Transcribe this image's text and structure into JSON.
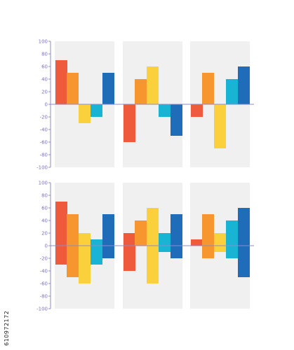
{
  "stock_id": "610972172",
  "colors": {
    "panel": "#f0f0f0",
    "axis": "#8c8cc8",
    "tick_text": "#7a74b8",
    "bars": [
      "#f05a3c",
      "#f7952f",
      "#fbd03d",
      "#19b3d3",
      "#1f6db8"
    ]
  },
  "chart_data": [
    {
      "type": "bar",
      "title": "",
      "xlabel": "",
      "ylabel": "",
      "ylim": [
        -100,
        100
      ],
      "yticks": [
        100,
        80,
        60,
        40,
        20,
        0,
        -20,
        -40,
        -60,
        -80,
        -100
      ],
      "tick_labels": [
        "100",
        "80",
        "60",
        "40",
        "20",
        "0",
        "-20",
        "-40",
        "-60",
        "-80",
        "-100"
      ],
      "grid": false,
      "style": "simple",
      "groups": [
        {
          "values": [
            70,
            50,
            -30,
            -20,
            50
          ]
        },
        {
          "values": [
            -60,
            40,
            60,
            -20,
            -50
          ]
        },
        {
          "values": [
            -20,
            50,
            -70,
            40,
            60
          ]
        }
      ]
    },
    {
      "type": "bar",
      "title": "",
      "xlabel": "",
      "ylabel": "",
      "ylim": [
        -100,
        100
      ],
      "yticks": [
        100,
        80,
        60,
        40,
        20,
        0,
        -20,
        -40,
        -60,
        -80,
        -100
      ],
      "tick_labels": [
        "100",
        "80",
        "60",
        "40",
        "20",
        "0",
        "-20",
        "-40",
        "-60",
        "-80",
        "-100"
      ],
      "grid": false,
      "style": "ranged",
      "groups": [
        {
          "ranges": [
            [
              -30,
              70
            ],
            [
              -50,
              50
            ],
            [
              -60,
              20
            ],
            [
              -30,
              10
            ],
            [
              -20,
              50
            ]
          ]
        },
        {
          "ranges": [
            [
              -40,
              20
            ],
            [
              0,
              40
            ],
            [
              -60,
              60
            ],
            [
              -10,
              20
            ],
            [
              -20,
              50
            ]
          ]
        },
        {
          "ranges": [
            [
              0,
              10
            ],
            [
              -20,
              50
            ],
            [
              -10,
              20
            ],
            [
              -20,
              40
            ],
            [
              -50,
              60
            ]
          ]
        }
      ]
    }
  ]
}
